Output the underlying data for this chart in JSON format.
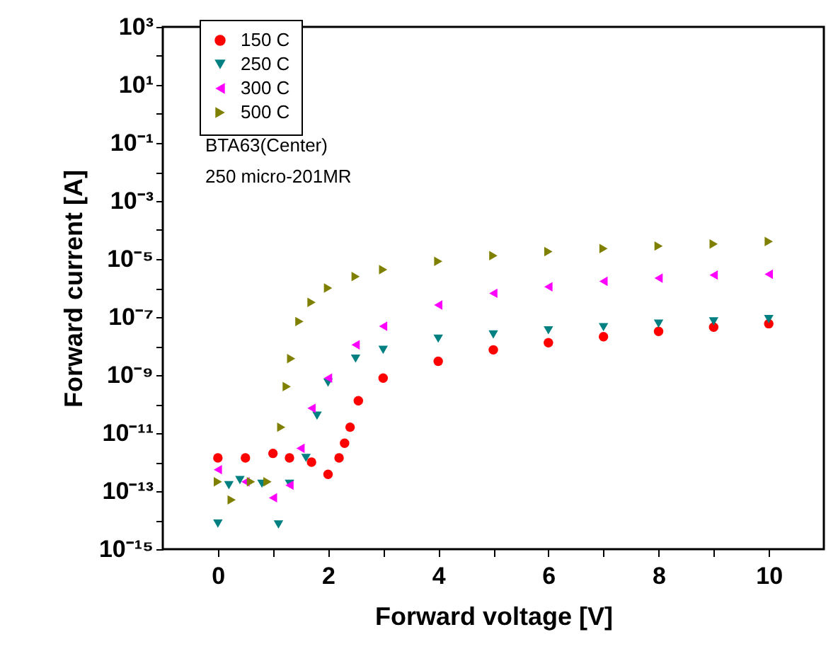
{
  "chart_data": {
    "type": "scatter",
    "xlabel": "Forward voltage [V]",
    "ylabel": "Forward current [A]",
    "log": "y",
    "grid": false,
    "legend": "top left",
    "xlim": [
      -1,
      11
    ],
    "xticks": [
      0,
      {
        "value": 1,
        "label": null
      },
      2,
      {
        "value": 3,
        "label": null
      },
      4,
      {
        "value": 5,
        "label": null
      },
      6,
      {
        "value": 7,
        "label": null
      },
      8,
      {
        "value": 9,
        "label": null
      },
      10
    ],
    "ylim": [
      1e-15,
      1000
    ],
    "yticks": [
      {
        "value": 1e-15,
        "label": "10⁻¹⁵"
      },
      {
        "value": 1e-14,
        "label": null
      },
      {
        "value": 1e-13,
        "label": "10⁻¹³"
      },
      {
        "value": 1e-12,
        "label": null
      },
      {
        "value": 1e-11,
        "label": "10⁻¹¹"
      },
      {
        "value": 1e-10,
        "label": null
      },
      {
        "value": 1e-09,
        "label": "10⁻⁹"
      },
      {
        "value": 1e-08,
        "label": null
      },
      {
        "value": 1e-07,
        "label": "10⁻⁷"
      },
      {
        "value": 1e-06,
        "label": null
      },
      {
        "value": 1e-05,
        "label": "10⁻⁵"
      },
      {
        "value": 0.0001,
        "label": null
      },
      {
        "value": 0.001,
        "label": "10⁻³"
      },
      {
        "value": 0.01,
        "label": null
      },
      {
        "value": 0.1,
        "label": "10⁻¹"
      },
      {
        "value": 1,
        "label": null
      },
      {
        "value": 10,
        "label": "10¹"
      },
      {
        "value": 100,
        "label": null
      },
      {
        "value": 1000,
        "label": "10³"
      }
    ],
    "annotations": [
      "BTA63(Center)",
      "250 micro-201MR"
    ],
    "series": [
      {
        "name": "150 C",
        "color": "#ff0000",
        "marker": "circle",
        "x": [
          0,
          0.5,
          1,
          1.3,
          1.7,
          2,
          2.2,
          2.3,
          2.4,
          2.55,
          3,
          4,
          5,
          6,
          7,
          8,
          9,
          10
        ],
        "values": [
          1.4e-12,
          1.4e-12,
          2e-12,
          1.4e-12,
          1e-12,
          3.8e-13,
          1.4e-12,
          4.5e-12,
          1.6e-11,
          1.3e-10,
          7.9e-10,
          3e-09,
          7.4e-09,
          1.3e-08,
          2.1e-08,
          3.2e-08,
          4.5e-08,
          5.9e-08
        ]
      },
      {
        "name": "250 C",
        "color": "#008080",
        "marker": "triangle-down",
        "x": [
          0,
          0.2,
          0.4,
          0.8,
          1.1,
          1.3,
          1.6,
          1.8,
          2,
          2.5,
          3,
          4,
          5,
          6,
          7,
          8,
          9,
          10
        ],
        "values": [
          7.6e-15,
          1.6e-13,
          2.4e-13,
          1.8e-13,
          7.1e-15,
          1.8e-13,
          1.4e-12,
          4e-11,
          5.5e-10,
          3.7e-09,
          7.4e-09,
          1.8e-08,
          2.5e-08,
          3.5e-08,
          4.5e-08,
          5.9e-08,
          7.1e-08,
          8.5e-08
        ]
      },
      {
        "name": "300 C",
        "color": "#ff00ff",
        "marker": "triangle-left",
        "x": [
          0,
          0.5,
          1,
          1.3,
          1.5,
          1.7,
          2,
          2.5,
          3,
          4,
          5,
          6,
          7,
          8,
          9,
          10
        ],
        "values": [
          5.5e-13,
          2.1e-13,
          5.9e-14,
          1.6e-13,
          3e-12,
          7.2e-11,
          7.9e-10,
          1.1e-08,
          4.8e-08,
          2.6e-07,
          6.6e-07,
          1.1e-06,
          1.7e-06,
          2.2e-06,
          2.8e-06,
          3e-06
        ]
      },
      {
        "name": "500 C",
        "color": "#808000",
        "marker": "triangle-right",
        "x": [
          0,
          0.25,
          0.6,
          0.9,
          1.15,
          1.25,
          1.33,
          1.48,
          1.7,
          2,
          2.5,
          3,
          4,
          5,
          6,
          7,
          8,
          9,
          10
        ],
        "values": [
          2.1e-13,
          5e-14,
          2.1e-13,
          2.1e-13,
          1.6e-11,
          4e-10,
          3.7e-09,
          7e-08,
          3.2e-07,
          1e-06,
          2.5e-06,
          4.3e-06,
          8.3e-06,
          1.3e-05,
          1.8e-05,
          2.3e-05,
          2.8e-05,
          3.3e-05,
          4e-05
        ]
      }
    ]
  }
}
